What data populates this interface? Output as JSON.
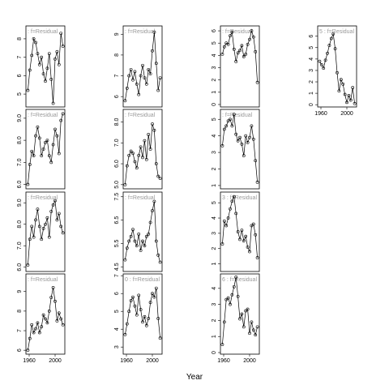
{
  "xlabel": "Year",
  "chart_data": [
    {
      "type": "line",
      "strip": ": f=Residual",
      "x": [
        1958,
        1961,
        1964,
        1967,
        1970,
        1973,
        1976,
        1979,
        1982,
        1985,
        1988,
        1991,
        1994,
        1997,
        2000,
        2003,
        2006,
        2009,
        2012
      ],
      "values": [
        5.2,
        6.3,
        7.1,
        8.0,
        7.8,
        7.2,
        6.6,
        7.0,
        6.1,
        5.7,
        6.4,
        7.2,
        5.8,
        4.5,
        6.9,
        7.3,
        6.6,
        8.3,
        7.6
      ],
      "xlim": [
        1955,
        2015
      ],
      "ylim": [
        4.3,
        8.7
      ],
      "yticks": [
        5,
        6,
        7,
        8
      ]
    },
    {
      "type": "line",
      "strip": ": f=Residual",
      "x": [
        1958,
        1961,
        1964,
        1967,
        1970,
        1973,
        1976,
        1979,
        1982,
        1985,
        1988,
        1991,
        1994,
        1997,
        2000,
        2003,
        2006,
        2009,
        2012
      ],
      "values": [
        5.8,
        6.4,
        7.0,
        7.3,
        6.8,
        7.2,
        6.6,
        6.1,
        7.0,
        7.5,
        6.9,
        6.6,
        7.3,
        7.1,
        8.2,
        9.1,
        7.6,
        6.3,
        6.9
      ],
      "xlim": [
        1955,
        2015
      ],
      "ylim": [
        5.5,
        9.4
      ],
      "yticks": [
        6,
        7,
        8,
        9
      ]
    },
    {
      "type": "line",
      "strip": ": f=Residual",
      "x": [
        1958,
        1961,
        1964,
        1967,
        1970,
        1973,
        1976,
        1979,
        1982,
        1985,
        1988,
        1991,
        1994,
        1997,
        2000,
        2003,
        2006,
        2009,
        2012
      ],
      "values": [
        4.1,
        4.7,
        5.0,
        4.9,
        5.6,
        5.9,
        4.5,
        3.5,
        4.2,
        4.4,
        4.8,
        3.9,
        4.1,
        4.9,
        5.3,
        6.0,
        5.5,
        4.3,
        1.8
      ],
      "xlim": [
        1955,
        2015
      ],
      "ylim": [
        -0.2,
        6.4
      ],
      "yticks": [
        0,
        1,
        2,
        3,
        4,
        5,
        6
      ]
    },
    {
      "type": "line",
      "strip": "5 : f=Residual",
      "x": [
        1958,
        1961,
        1964,
        1967,
        1970,
        1973,
        1976,
        1979,
        1982,
        1985,
        1988,
        1991,
        1994,
        1997,
        2000,
        2003,
        2006,
        2009,
        2012
      ],
      "values": [
        3.8,
        3.5,
        3.2,
        3.9,
        4.5,
        5.2,
        5.8,
        6.2,
        4.9,
        2.8,
        1.2,
        2.2,
        1.8,
        0.9,
        0.2,
        0.8,
        0.4,
        1.5,
        0.1
      ],
      "xlim": [
        1955,
        2015
      ],
      "ylim": [
        -0.2,
        6.9
      ],
      "yticks": [
        0,
        1,
        2,
        3,
        4,
        5,
        6
      ],
      "xticks": [
        1960,
        2000
      ]
    },
    {
      "type": "line",
      "strip": ": f=Residual",
      "x": [
        1958,
        1961,
        1964,
        1967,
        1970,
        1973,
        1976,
        1979,
        1982,
        1985,
        1988,
        1991,
        1994,
        1997,
        2000,
        2003,
        2006,
        2009,
        2012
      ],
      "values": [
        6.0,
        6.9,
        7.5,
        7.3,
        8.2,
        8.6,
        8.1,
        7.3,
        7.6,
        7.9,
        8.0,
        7.3,
        7.0,
        7.8,
        8.5,
        8.2,
        7.4,
        8.9,
        9.2
      ],
      "xlim": [
        1955,
        2015
      ],
      "ylim": [
        5.8,
        9.4
      ],
      "yticks": [
        {
          "value": 6,
          "label": "6.0"
        },
        {
          "value": 7,
          "label": "7.0"
        },
        {
          "value": 8,
          "label": "8.0"
        },
        {
          "value": 9,
          "label": "9.0"
        }
      ]
    },
    {
      "type": "line",
      "strip": ": f=Residual",
      "x": [
        1958,
        1961,
        1964,
        1967,
        1970,
        1973,
        1976,
        1979,
        1982,
        1985,
        1988,
        1991,
        1994,
        1997,
        2000,
        2003,
        2006,
        2009,
        2012
      ],
      "values": [
        5.0,
        5.9,
        6.4,
        6.6,
        6.5,
        6.1,
        5.8,
        6.4,
        6.8,
        6.3,
        7.1,
        6.2,
        7.4,
        6.7,
        7.9,
        7.6,
        6.0,
        5.4,
        5.3
      ],
      "xlim": [
        1955,
        2015
      ],
      "ylim": [
        4.8,
        8.6
      ],
      "yticks": [
        {
          "value": 5,
          "label": "5.0"
        },
        {
          "value": 6,
          "label": "6.0"
        },
        {
          "value": 7,
          "label": "7.0"
        },
        {
          "value": 8,
          "label": "8.0"
        }
      ]
    },
    {
      "type": "line",
      "strip": ": f=Residual",
      "x": [
        1958,
        1961,
        1964,
        1967,
        1970,
        1973,
        1976,
        1979,
        1982,
        1985,
        1988,
        1991,
        1994,
        1997,
        2000,
        2003,
        2006,
        2009,
        2012
      ],
      "values": [
        3.4,
        4.4,
        4.6,
        4.9,
        5.0,
        4.6,
        5.3,
        4.1,
        3.7,
        3.9,
        3.5,
        2.8,
        4.0,
        3.6,
        3.9,
        4.6,
        3.8,
        2.5,
        1.2
      ],
      "xlim": [
        1955,
        2015
      ],
      "ylim": [
        0.8,
        5.6
      ],
      "yticks": [
        1,
        2,
        3,
        4,
        5
      ]
    },
    {
      "type": "line",
      "strip": ": f=Residual",
      "x": [
        1958,
        1961,
        1964,
        1967,
        1970,
        1973,
        1976,
        1979,
        1982,
        1985,
        1988,
        1991,
        1994,
        1997,
        2000,
        2003,
        2006,
        2009,
        2012
      ],
      "values": [
        6.1,
        7.3,
        7.9,
        7.4,
        8.2,
        8.7,
        7.9,
        7.3,
        7.8,
        8.0,
        8.3,
        7.4,
        8.6,
        8.9,
        9.1,
        8.2,
        8.5,
        7.9,
        7.6
      ],
      "xlim": [
        1955,
        2015
      ],
      "ylim": [
        5.8,
        9.5
      ],
      "yticks": [
        {
          "value": 6,
          "label": "6.0"
        },
        {
          "value": 7,
          "label": "7.0"
        },
        {
          "value": 8,
          "label": "8.0"
        },
        {
          "value": 9,
          "label": "9.0"
        }
      ]
    },
    {
      "type": "line",
      "strip": ": f=Residual",
      "x": [
        1958,
        1961,
        1964,
        1967,
        1970,
        1973,
        1976,
        1979,
        1982,
        1985,
        1988,
        1991,
        1994,
        1997,
        2000,
        2003,
        2006,
        2009,
        2012
      ],
      "values": [
        4.8,
        5.3,
        5.6,
        5.8,
        6.1,
        5.6,
        5.4,
        5.9,
        5.2,
        5.6,
        5.4,
        5.8,
        5.9,
        6.4,
        6.9,
        7.3,
        5.6,
        5.0,
        4.7
      ],
      "xlim": [
        1955,
        2015
      ],
      "ylim": [
        4.3,
        7.7
      ],
      "yticks": [
        4.5,
        5.5,
        6.5,
        7.5
      ]
    },
    {
      "type": "line",
      "strip": "3 : f=Residual",
      "x": [
        1958,
        1961,
        1964,
        1967,
        1970,
        1973,
        1976,
        1979,
        1982,
        1985,
        1988,
        1991,
        1994,
        1997,
        2000,
        2003,
        2006,
        2009,
        2012
      ],
      "values": [
        2.3,
        3.8,
        3.5,
        4.0,
        4.6,
        5.1,
        5.4,
        4.3,
        3.1,
        2.6,
        3.2,
        2.5,
        2.8,
        2.1,
        1.8,
        3.5,
        3.6,
        2.9,
        1.4
      ],
      "xlim": [
        1955,
        2015
      ],
      "ylim": [
        0.5,
        5.7
      ],
      "yticks": [
        1,
        2,
        3,
        4,
        5
      ]
    },
    {
      "type": "line",
      "strip": ": f=Residual",
      "x": [
        1958,
        1961,
        1964,
        1967,
        1970,
        1973,
        1976,
        1979,
        1982,
        1985,
        1988,
        1991,
        1994,
        1997,
        2000,
        2003,
        2006,
        2009,
        2012
      ],
      "values": [
        6.0,
        6.6,
        7.3,
        6.9,
        7.1,
        7.4,
        6.9,
        7.2,
        7.8,
        7.6,
        7.4,
        8.0,
        8.7,
        9.2,
        8.5,
        7.5,
        7.9,
        7.6,
        7.3
      ],
      "xlim": [
        1955,
        2015
      ],
      "ylim": [
        5.8,
        9.9
      ],
      "yticks": [
        6,
        7,
        8,
        9
      ],
      "xticks": [
        1960,
        2000
      ]
    },
    {
      "type": "line",
      "strip": "0 : f=Residual",
      "x": [
        1958,
        1961,
        1964,
        1967,
        1970,
        1973,
        1976,
        1979,
        1982,
        1985,
        1988,
        1991,
        1994,
        1997,
        2000,
        2003,
        2006,
        2009,
        2012
      ],
      "values": [
        3.7,
        4.3,
        5.0,
        5.6,
        5.8,
        5.3,
        4.8,
        5.9,
        5.1,
        4.4,
        4.7,
        4.2,
        4.6,
        5.5,
        6.0,
        5.8,
        6.3,
        4.6,
        3.5
      ],
      "xlim": [
        1955,
        2015
      ],
      "ylim": [
        2.6,
        7.1
      ],
      "yticks": [
        3,
        4,
        5,
        6,
        7
      ],
      "xticks": [
        1960,
        2000
      ]
    },
    {
      "type": "line",
      "strip": "6 : f=Residual",
      "x": [
        1958,
        1961,
        1964,
        1967,
        1970,
        1973,
        1976,
        1979,
        1982,
        1985,
        1988,
        1991,
        1994,
        1997,
        2000,
        2003,
        2006,
        2009,
        2012
      ],
      "values": [
        0.5,
        1.9,
        3.3,
        3.4,
        3.0,
        3.6,
        4.1,
        4.7,
        3.5,
        2.1,
        2.4,
        1.6,
        2.6,
        2.7,
        1.2,
        1.9,
        1.4,
        1.1,
        1.6
      ],
      "xlim": [
        1955,
        2015
      ],
      "ylim": [
        -0.1,
        4.9
      ],
      "yticks": [
        0,
        1,
        2,
        3,
        4
      ],
      "xticks": [
        1960,
        2000
      ]
    }
  ]
}
